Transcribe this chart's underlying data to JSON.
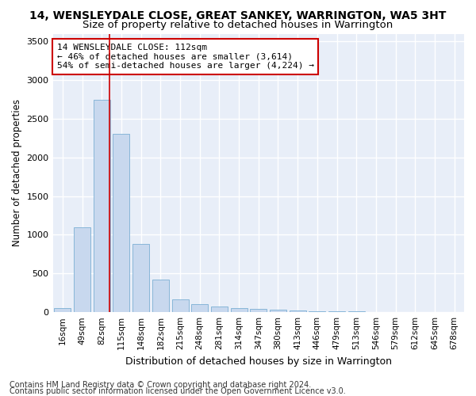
{
  "title": "14, WENSLEYDALE CLOSE, GREAT SANKEY, WARRINGTON, WA5 3HT",
  "subtitle": "Size of property relative to detached houses in Warrington",
  "xlabel": "Distribution of detached houses by size in Warrington",
  "ylabel": "Number of detached properties",
  "categories": [
    "16sqm",
    "49sqm",
    "82sqm",
    "115sqm",
    "148sqm",
    "182sqm",
    "215sqm",
    "248sqm",
    "281sqm",
    "314sqm",
    "347sqm",
    "380sqm",
    "413sqm",
    "446sqm",
    "479sqm",
    "513sqm",
    "546sqm",
    "579sqm",
    "612sqm",
    "645sqm",
    "678sqm"
  ],
  "values": [
    50,
    1100,
    2750,
    2300,
    880,
    420,
    170,
    100,
    70,
    55,
    40,
    30,
    25,
    15,
    10,
    8,
    5,
    4,
    3,
    2,
    2
  ],
  "bar_color": "#c8d8ee",
  "bar_edge_color": "#7bafd4",
  "background_color": "#e8eef8",
  "grid_color": "#ffffff",
  "annotation_box_text": "14 WENSLEYDALE CLOSE: 112sqm\n← 46% of detached houses are smaller (3,614)\n54% of semi-detached houses are larger (4,224) →",
  "annotation_box_color": "#cc0000",
  "vline_x": 2.4,
  "vline_color": "#cc0000",
  "ylim_max": 3600,
  "footer1": "Contains HM Land Registry data © Crown copyright and database right 2024.",
  "footer2": "Contains public sector information licensed under the Open Government Licence v3.0.",
  "title_fontsize": 10,
  "subtitle_fontsize": 9.5,
  "xlabel_fontsize": 9,
  "ylabel_fontsize": 8.5,
  "tick_fontsize": 7.5,
  "annotation_fontsize": 8,
  "footer_fontsize": 7
}
